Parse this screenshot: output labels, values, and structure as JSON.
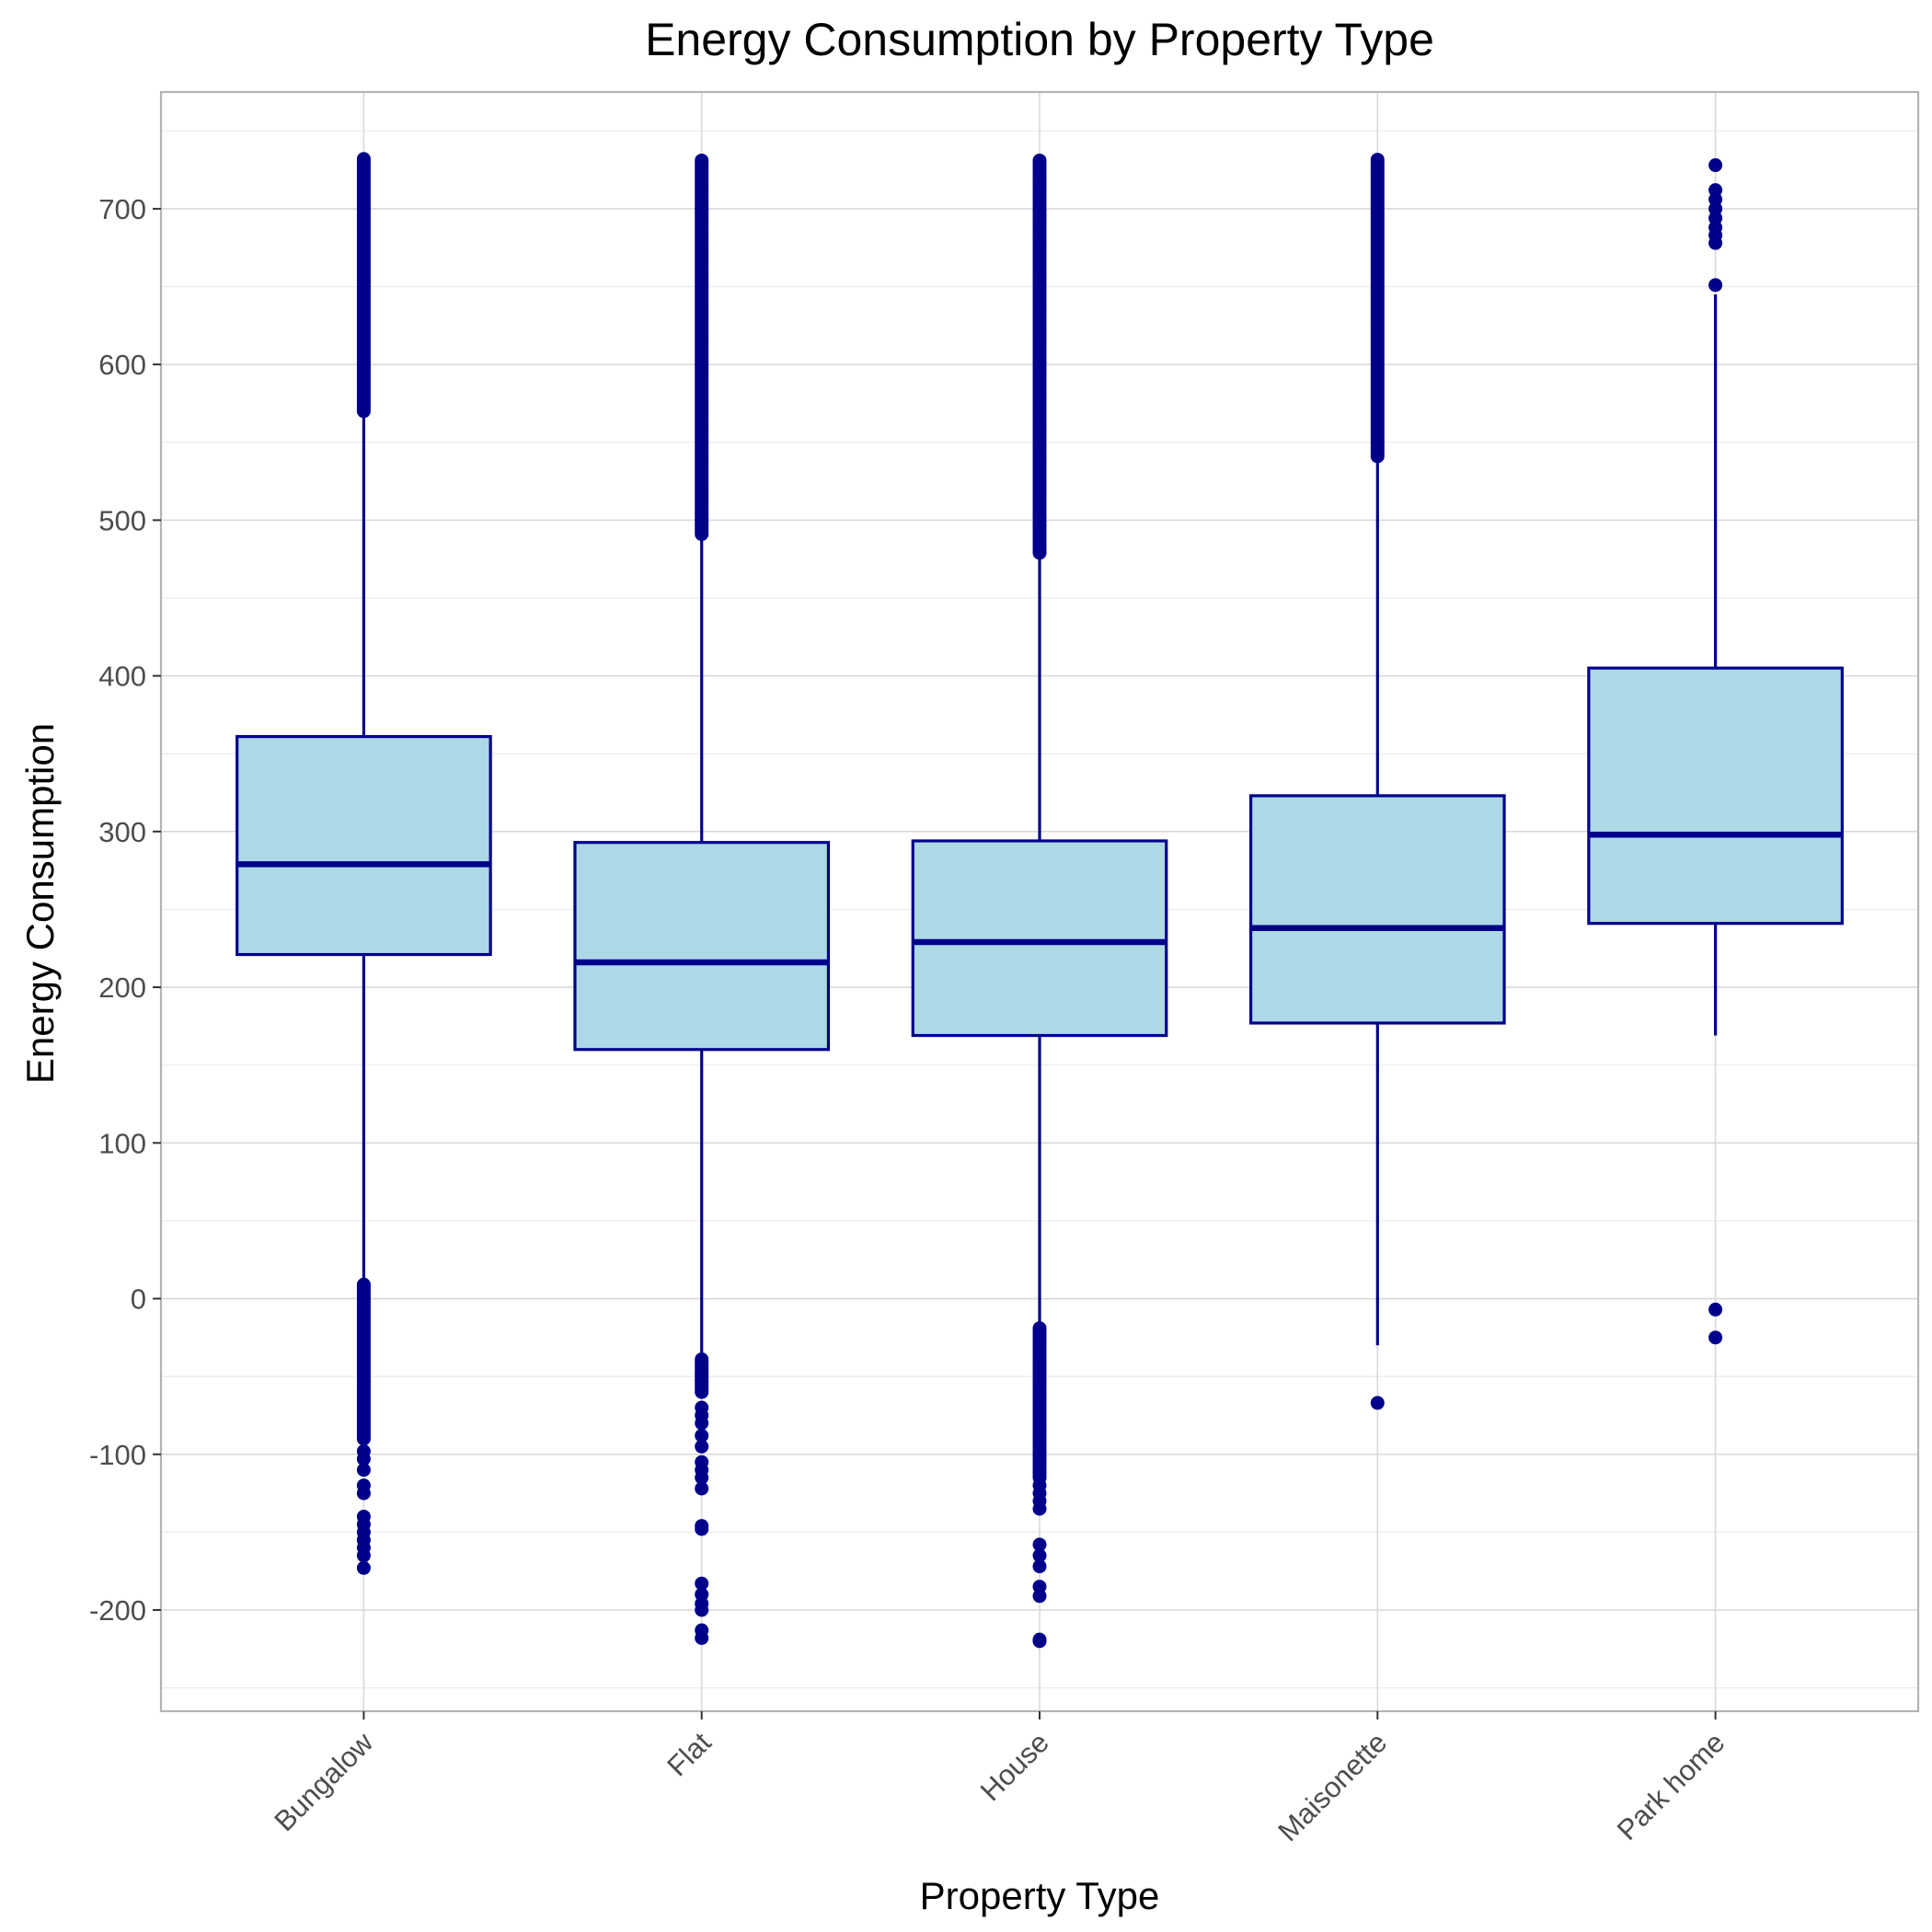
{
  "chart_data": {
    "type": "boxplot",
    "title": "Energy Consumption by Property Type",
    "xlabel": "Property Type",
    "ylabel": "Energy Consumption",
    "ylim": [
      -265,
      775
    ],
    "yticks": [
      -200,
      -100,
      0,
      100,
      200,
      300,
      400,
      500,
      600,
      700
    ],
    "grid": true,
    "categories": [
      "Bungalow",
      "Flat",
      "House",
      "Maisonette",
      "Park home"
    ],
    "boxes": [
      {
        "category": "Bungalow",
        "q1": 221,
        "median": 279,
        "q3": 361,
        "whisker_low": 12,
        "whisker_high": 570,
        "outliers_high_range": [
          570,
          732
        ],
        "outliers_low_range": [
          -90,
          10
        ],
        "outliers_low": [
          -98,
          -103,
          -110,
          -120,
          -125,
          -140,
          -145,
          -150,
          -155,
          -160,
          -165,
          -173
        ]
      },
      {
        "category": "Flat",
        "q1": 160,
        "median": 216,
        "q3": 293,
        "whisker_low": -38,
        "whisker_high": 491,
        "outliers_high_range": [
          491,
          732
        ],
        "outliers_low_range": [
          -60,
          -38
        ],
        "outliers_low": [
          -70,
          -75,
          -80,
          -88,
          -95,
          -105,
          -110,
          -115,
          -122,
          -146,
          -148,
          -183,
          -190,
          -196,
          -200,
          -213,
          -218
        ]
      },
      {
        "category": "House",
        "q1": 169,
        "median": 229,
        "q3": 294,
        "whisker_low": -18,
        "whisker_high": 479,
        "outliers_high_range": [
          479,
          732
        ],
        "outliers_low_range": [
          -115,
          -18
        ],
        "outliers_low": [
          -120,
          -125,
          -130,
          -135,
          -158,
          -165,
          -172,
          -185,
          -191,
          -219,
          -220
        ]
      },
      {
        "category": "Maisonette",
        "q1": 177,
        "median": 238,
        "q3": 323,
        "whisker_low": -30,
        "whisker_high": 541,
        "outliers_high_range": [
          541,
          732
        ],
        "outliers_low_range": [],
        "outliers_low": [
          -67
        ]
      },
      {
        "category": "Park home",
        "q1": 241,
        "median": 298,
        "q3": 405,
        "whisker_low": 169,
        "whisker_high": 645,
        "outliers_high_range": [],
        "outliers_high": [
          651,
          678,
          683,
          688,
          694,
          700,
          706,
          712,
          728
        ],
        "outliers_low_range": [],
        "outliers_low": [
          -7,
          -25
        ]
      }
    ],
    "colors": {
      "box_fill": "#add8e6",
      "box_line": "#00008b",
      "point": "#00008b",
      "grid_major": "#d9d9d9",
      "grid_minor": "#ebebeb",
      "panel_border": "#b3b3b3"
    }
  }
}
